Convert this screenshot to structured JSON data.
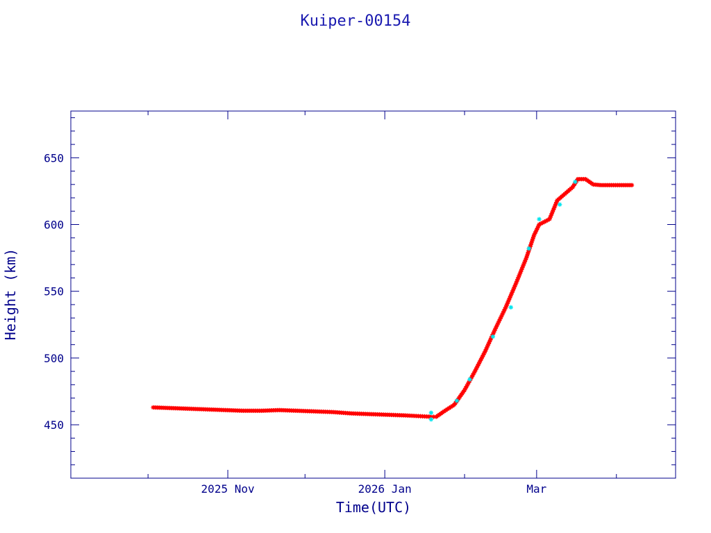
{
  "chart_data": {
    "type": "scatter",
    "title": "Kuiper-00154",
    "xlabel": "Time(UTC)",
    "ylabel": "Height (km)",
    "xlim": [
      "2025-09-01",
      "2026-04-24"
    ],
    "ylim": [
      410,
      685
    ],
    "x_ticks": [
      {
        "date": "2025-11-01",
        "label": "2025 Nov"
      },
      {
        "date": "2026-01-01",
        "label": "2026 Jan"
      },
      {
        "date": "2026-03-01",
        "label": "Mar"
      }
    ],
    "y_ticks": [
      450,
      500,
      550,
      600,
      650
    ],
    "grid": false,
    "legend": "none",
    "colors": {
      "axes": "#00008b",
      "title": "#1a1ab0",
      "marker_primary": "#ff0000",
      "marker_secondary": "#00e5ee"
    },
    "series": [
      {
        "marker": "asterisk",
        "color": "#ff0000",
        "points": [
          [
            "2025-10-03",
            463
          ],
          [
            "2025-10-10",
            462.5
          ],
          [
            "2025-10-17",
            462
          ],
          [
            "2025-10-24",
            461.5
          ],
          [
            "2025-10-31",
            461
          ],
          [
            "2025-11-07",
            460.5
          ],
          [
            "2025-11-14",
            460.5
          ],
          [
            "2025-11-21",
            461
          ],
          [
            "2025-11-28",
            460.5
          ],
          [
            "2025-12-05",
            460
          ],
          [
            "2025-12-12",
            459.5
          ],
          [
            "2025-12-19",
            458.5
          ],
          [
            "2025-12-26",
            458
          ],
          [
            "2026-01-02",
            457.5
          ],
          [
            "2026-01-09",
            457
          ],
          [
            "2026-01-14",
            456.5
          ],
          [
            "2026-01-19",
            456
          ],
          [
            "2026-01-21",
            456
          ],
          [
            "2026-01-24",
            460
          ],
          [
            "2026-01-28",
            465
          ],
          [
            "2026-02-01",
            476
          ],
          [
            "2026-02-05",
            490
          ],
          [
            "2026-02-09",
            505
          ],
          [
            "2026-02-13",
            522
          ],
          [
            "2026-02-17",
            538
          ],
          [
            "2026-02-21",
            556
          ],
          [
            "2026-02-25",
            575
          ],
          [
            "2026-02-28",
            592
          ],
          [
            "2026-03-02",
            600
          ],
          [
            "2026-03-04",
            602
          ],
          [
            "2026-03-06",
            604
          ],
          [
            "2026-03-09",
            618
          ],
          [
            "2026-03-12",
            623
          ],
          [
            "2026-03-15",
            628
          ],
          [
            "2026-03-17",
            634
          ],
          [
            "2026-03-20",
            634
          ],
          [
            "2026-03-23",
            630
          ],
          [
            "2026-03-26",
            629.5
          ],
          [
            "2026-03-30",
            629.5
          ],
          [
            "2026-04-03",
            629.5
          ],
          [
            "2026-04-07",
            629.5
          ]
        ]
      },
      {
        "marker": "asterisk",
        "color": "#00e5ee",
        "points": [
          [
            "2026-01-19",
            459
          ],
          [
            "2026-01-19",
            454
          ],
          [
            "2026-01-29",
            468
          ],
          [
            "2026-02-03",
            484
          ],
          [
            "2026-02-12",
            516
          ],
          [
            "2026-02-19",
            538
          ],
          [
            "2026-02-26",
            582
          ],
          [
            "2026-03-02",
            604
          ],
          [
            "2026-03-10",
            615
          ],
          [
            "2026-03-16",
            632
          ]
        ]
      }
    ]
  }
}
